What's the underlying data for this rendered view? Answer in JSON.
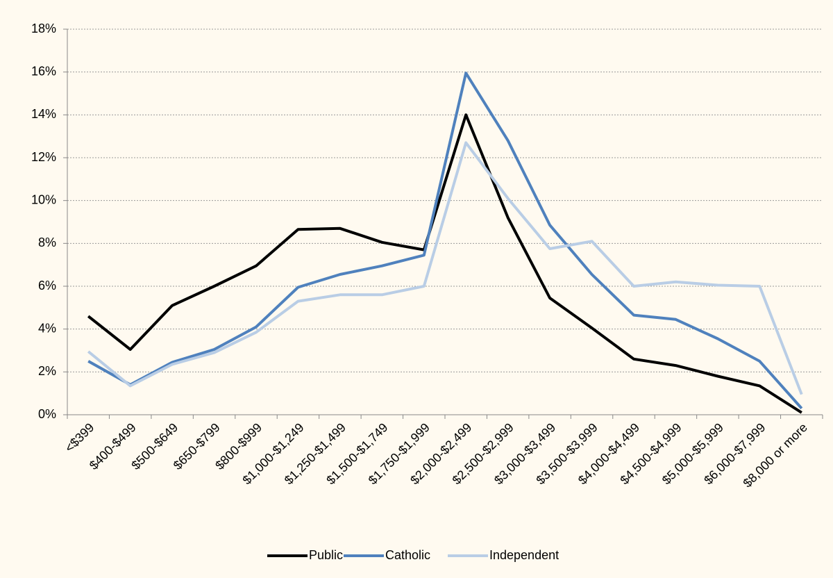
{
  "chart_data": {
    "type": "line",
    "categories": [
      "<$399",
      "$400-$499",
      "$500-$649",
      "$650-$799",
      "$800-$999",
      "$1,000-$1,249",
      "$1,250-$1,499",
      "$1,500-$1,749",
      "$1,750-$1,999",
      "$2,000-$2,499",
      "$2,500-$2,999",
      "$3,000-$3,499",
      "$3,500-$3,999",
      "$4,000-$4,499",
      "$4,500-$4,999",
      "$5,000-$5,999",
      "$6,000-$7,999",
      "$8,000 or more"
    ],
    "series": [
      {
        "name": "Public",
        "color": "#000000",
        "values": [
          4.6,
          3.05,
          5.1,
          6.0,
          6.95,
          8.65,
          8.7,
          8.05,
          7.7,
          14.0,
          9.2,
          5.45,
          4.05,
          2.6,
          2.3,
          1.8,
          1.35,
          0.1
        ]
      },
      {
        "name": "Catholic",
        "color": "#4f81bd",
        "values": [
          2.5,
          1.4,
          2.45,
          3.05,
          4.1,
          5.95,
          6.55,
          6.95,
          7.45,
          15.95,
          12.8,
          8.85,
          6.55,
          4.65,
          4.45,
          3.55,
          2.5,
          0.3
        ]
      },
      {
        "name": "Independent",
        "color": "#b9cde5",
        "values": [
          2.95,
          1.35,
          2.35,
          2.9,
          3.85,
          5.3,
          5.6,
          5.6,
          6.0,
          12.7,
          10.1,
          7.75,
          8.1,
          6.0,
          6.2,
          6.05,
          6.0,
          0.95
        ]
      }
    ],
    "ylim": [
      0,
      18
    ],
    "yticks": [
      {
        "value": 0,
        "label": "0%"
      },
      {
        "value": 2,
        "label": "2%"
      },
      {
        "value": 4,
        "label": "4%"
      },
      {
        "value": 6,
        "label": "6%"
      },
      {
        "value": 8,
        "label": "8%"
      },
      {
        "value": 10,
        "label": "10%"
      },
      {
        "value": 12,
        "label": "12%"
      },
      {
        "value": 14,
        "label": "14%"
      },
      {
        "value": 16,
        "label": "16%"
      },
      {
        "value": 18,
        "label": "18%"
      }
    ],
    "grid": true,
    "legend": "bottom"
  }
}
